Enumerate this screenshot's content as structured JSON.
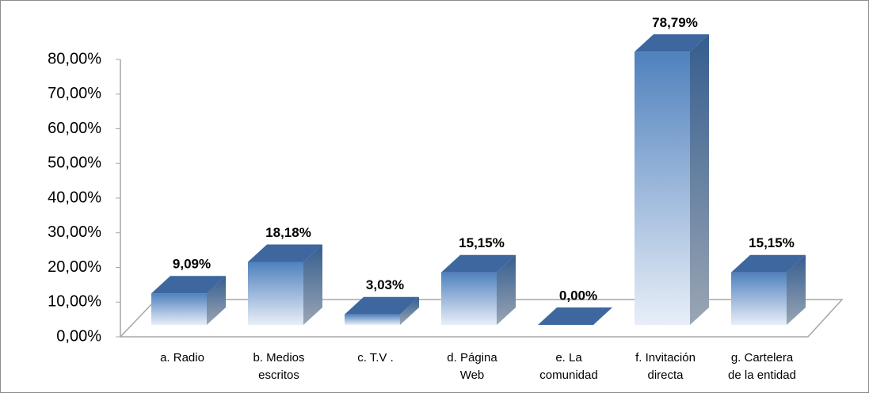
{
  "chart_data": {
    "type": "bar3d",
    "categories": [
      [
        "a. Radio"
      ],
      [
        "b. Medios",
        "escritos"
      ],
      [
        "c. T.V ."
      ],
      [
        "d. Página",
        "Web"
      ],
      [
        "e. La",
        "comunidad"
      ],
      [
        "f. Invitación",
        "directa"
      ],
      [
        "g. Cartelera",
        "de la entidad"
      ]
    ],
    "values": [
      9.09,
      18.18,
      3.03,
      15.15,
      0,
      78.79,
      15.15
    ],
    "value_labels": [
      "9,09%",
      "18,18%",
      "3,03%",
      "15,15%",
      "0,00%",
      "78,79%",
      "15,15%"
    ],
    "color": "#4f81bd",
    "ylim": [
      0,
      80
    ],
    "yticks": [
      {
        "value": 0,
        "label": "0,00%"
      },
      {
        "value": 10,
        "label": "10,00%"
      },
      {
        "value": 20,
        "label": "20,00%"
      },
      {
        "value": 30,
        "label": "30,00%"
      },
      {
        "value": 40,
        "label": "40,00%"
      },
      {
        "value": 50,
        "label": "50,00%"
      },
      {
        "value": 60,
        "label": "60,00%"
      },
      {
        "value": 70,
        "label": "70,00%"
      },
      {
        "value": 80,
        "label": "80,00%"
      }
    ]
  }
}
